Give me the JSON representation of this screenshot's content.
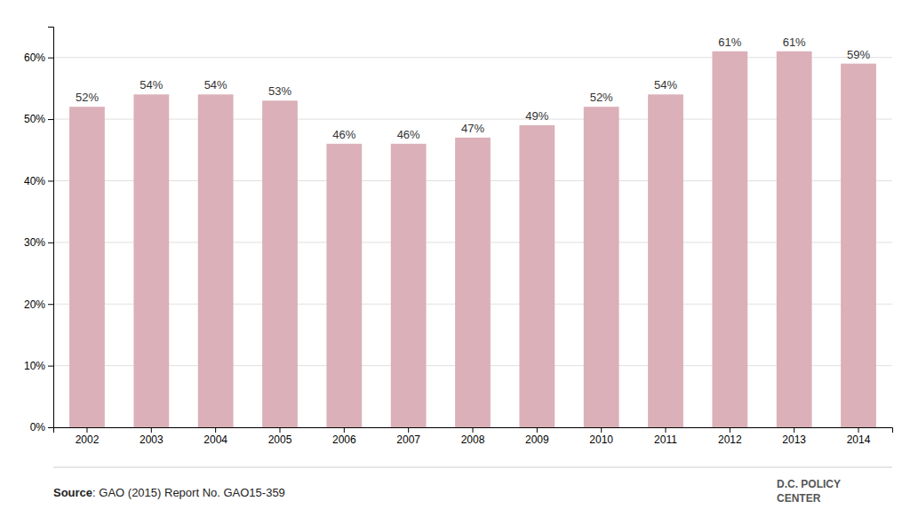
{
  "chart_data": {
    "type": "bar",
    "categories": [
      "2002",
      "2003",
      "2004",
      "2005",
      "2006",
      "2007",
      "2008",
      "2009",
      "2010",
      "2011",
      "2012",
      "2013",
      "2014"
    ],
    "values": [
      52,
      54,
      54,
      53,
      46,
      46,
      47,
      49,
      52,
      54,
      61,
      61,
      59
    ],
    "value_labels": [
      "52%",
      "54%",
      "54%",
      "53%",
      "46%",
      "46%",
      "47%",
      "49%",
      "52%",
      "54%",
      "61%",
      "61%",
      "59%"
    ],
    "data_labels": true,
    "color": "#dbb0b8",
    "ylim": [
      0,
      65
    ],
    "yticks": [
      {
        "value": 0,
        "label": "0%"
      },
      {
        "value": 10,
        "label": "10%"
      },
      {
        "value": 20,
        "label": "20%"
      },
      {
        "value": 30,
        "label": "30%"
      },
      {
        "value": 40,
        "label": "40%"
      },
      {
        "value": 50,
        "label": "50%"
      },
      {
        "value": 60,
        "label": "60%"
      }
    ],
    "grid": true,
    "annotations": [
      "Source",
      ": GAO (2015) Report No. GAO15-359",
      "D.C. POLICY",
      "CENTER"
    ]
  }
}
